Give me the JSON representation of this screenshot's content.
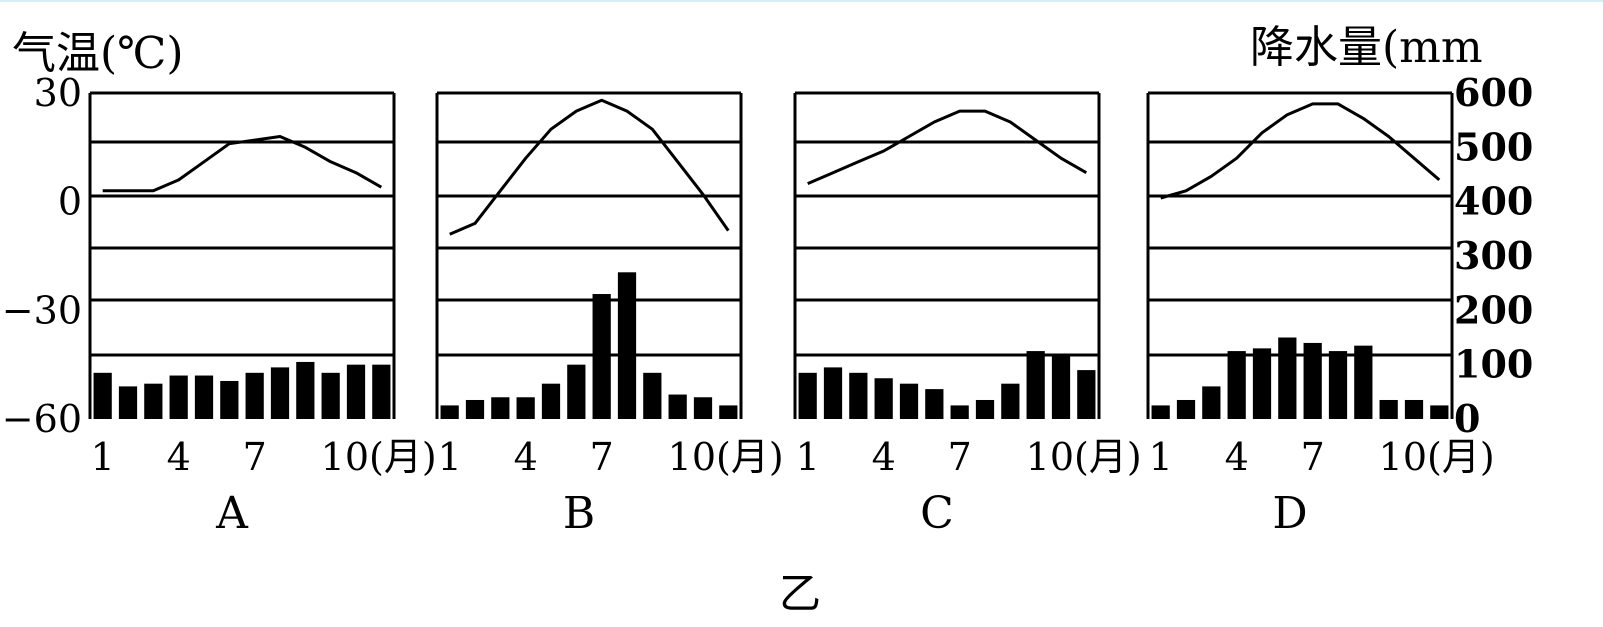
{
  "figure_label": "乙",
  "left_axis_title": "气温(℃)",
  "right_axis_title": "降水量(mm",
  "left_ticks": [
    "30",
    "0",
    "−30",
    "−60"
  ],
  "left_tick_values": [
    30,
    0,
    -30,
    -60
  ],
  "right_ticks": [
    "600",
    "500",
    "400",
    "300",
    "200",
    "100",
    "0"
  ],
  "right_tick_values": [
    600,
    500,
    400,
    300,
    200,
    100,
    0
  ],
  "x_ticks": [
    "1",
    "4",
    "7",
    "10(月)"
  ],
  "x_tick_months": [
    1,
    4,
    7,
    10
  ],
  "colors": {
    "ink": "#000000",
    "background": "#ffffff"
  },
  "chart_data": [
    {
      "type": "bar+line",
      "panel_label": "A",
      "x": [
        1,
        2,
        3,
        4,
        5,
        6,
        7,
        8,
        9,
        10,
        11,
        12
      ],
      "temperature_c": [
        3,
        3,
        3,
        6,
        11,
        16,
        17,
        18,
        15,
        11,
        8,
        4
      ],
      "precipitation_mm": [
        85,
        60,
        65,
        80,
        80,
        70,
        85,
        95,
        105,
        85,
        100,
        100
      ],
      "temp_range": [
        -60,
        30
      ],
      "precip_range": [
        0,
        600
      ]
    },
    {
      "type": "bar+line",
      "panel_label": "B",
      "x": [
        1,
        2,
        3,
        4,
        5,
        6,
        7,
        8,
        9,
        10,
        11,
        12
      ],
      "temperature_c": [
        -9,
        -6,
        3,
        12,
        20,
        25,
        28,
        25,
        20,
        11,
        2,
        -8
      ],
      "precipitation_mm": [
        25,
        35,
        40,
        40,
        65,
        100,
        230,
        270,
        85,
        45,
        40,
        25
      ],
      "temp_range": [
        -60,
        30
      ],
      "precip_range": [
        0,
        600
      ]
    },
    {
      "type": "bar+line",
      "panel_label": "C",
      "x": [
        1,
        2,
        3,
        4,
        5,
        6,
        7,
        8,
        9,
        10,
        11,
        12
      ],
      "temperature_c": [
        5,
        8,
        11,
        14,
        18,
        22,
        25,
        25,
        22,
        17,
        12,
        8
      ],
      "precipitation_mm": [
        85,
        95,
        85,
        75,
        65,
        55,
        25,
        35,
        65,
        125,
        120,
        90
      ],
      "temp_range": [
        -60,
        30
      ],
      "precip_range": [
        0,
        600
      ]
    },
    {
      "type": "bar+line",
      "panel_label": "D",
      "x": [
        1,
        2,
        3,
        4,
        5,
        6,
        7,
        8,
        9,
        10,
        11,
        12
      ],
      "temperature_c": [
        1,
        3,
        7,
        12,
        19,
        24,
        27,
        27,
        23,
        18,
        12,
        6
      ],
      "precipitation_mm": [
        25,
        35,
        60,
        125,
        130,
        150,
        140,
        125,
        135,
        35,
        35,
        25
      ],
      "temp_range": [
        -60,
        30
      ],
      "precip_range": [
        0,
        600
      ]
    }
  ]
}
